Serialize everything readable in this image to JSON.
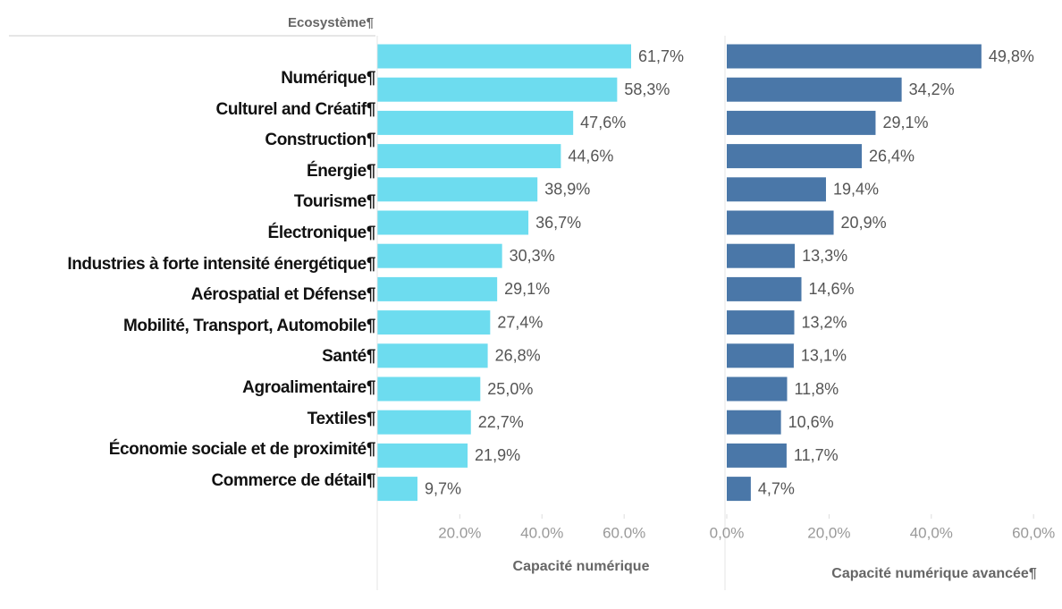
{
  "chart_data": [
    {
      "type": "barh",
      "ylabel": "Ecosystème¶",
      "xlabel": "Capacité numérique",
      "color": "#6ddcef",
      "categories": [
        "Numérique¶",
        "Culturel and Créatif¶",
        "Construction¶",
        "Énergie¶",
        "Tourisme¶",
        "Électronique¶",
        "Industries à forte intensité énergétique¶",
        "Aérospatial et Défense¶",
        "Mobilité, Transport, Automobile¶",
        "Santé¶",
        "Agroalimentaire¶",
        "Textiles¶",
        "Économie sociale et de proximité¶",
        "Commerce de détail¶"
      ],
      "values": [
        61.7,
        58.3,
        47.6,
        44.6,
        38.9,
        36.7,
        30.3,
        29.1,
        27.4,
        26.8,
        25.0,
        22.7,
        21.9,
        9.7
      ],
      "value_labels": [
        "61,7%",
        "58,3%",
        "47,6%",
        "44,6%",
        "38,9%",
        "36,7%",
        "30,3%",
        "29,1%",
        "27,4%",
        "26,8%",
        "25,0%",
        "22,7%",
        "21,9%",
        "9,7%"
      ],
      "xlim": [
        0,
        82
      ],
      "xticks": [
        {
          "value": 20,
          "label": "20.0%"
        },
        {
          "value": 40,
          "label": "40.0%"
        },
        {
          "value": 60,
          "label": "60.0%"
        }
      ]
    },
    {
      "type": "barh",
      "xlabel": "Capacité numérique avancée¶",
      "color": "#4a77a8",
      "values": [
        49.8,
        34.2,
        29.1,
        26.4,
        19.4,
        20.9,
        13.3,
        14.6,
        13.2,
        13.1,
        11.8,
        10.6,
        11.7,
        4.7
      ],
      "value_labels": [
        "49,8%",
        "34,2%",
        "29,1%",
        "26,4%",
        "19,4%",
        "20,9%",
        "13,3%",
        "14,6%",
        "13,2%",
        "13,1%",
        "11,8%",
        "10,6%",
        "11,7%",
        "4,7%"
      ],
      "xlim": [
        0,
        65
      ],
      "xticks": [
        {
          "value": 0,
          "label": "0,0%"
        },
        {
          "value": 20,
          "label": "20,0%"
        },
        {
          "value": 40,
          "label": "40,0%"
        },
        {
          "value": 60,
          "label": "60,0%"
        }
      ]
    }
  ]
}
